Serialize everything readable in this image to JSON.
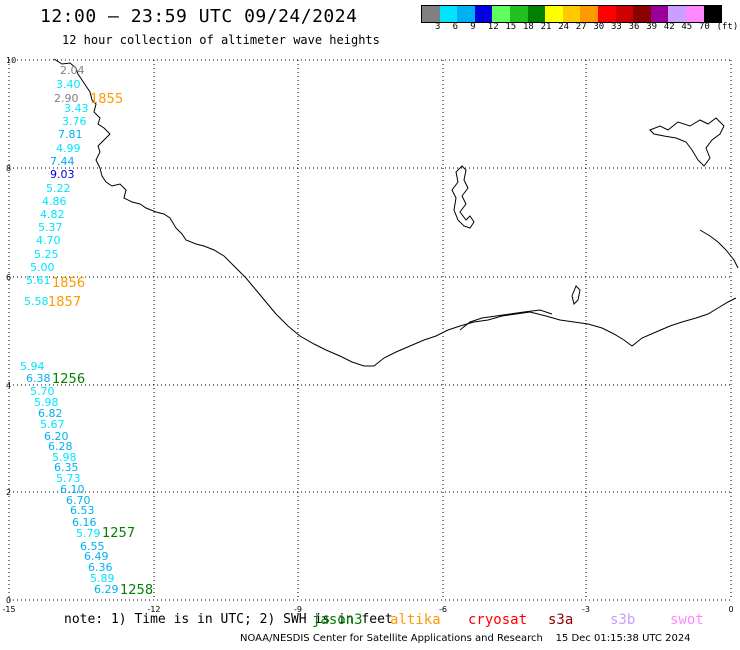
{
  "header": {
    "title": "12:00 – 23:59 UTC 09/24/2024",
    "subtitle": "12 hour collection of altimeter wave heights"
  },
  "legend": {
    "colors": [
      "#808080",
      "#00e5ff",
      "#00b0f0",
      "#0000e0",
      "#60ff60",
      "#20c020",
      "#008000",
      "#ffff00",
      "#ffc800",
      "#ff9900",
      "#ff0000",
      "#cc0000",
      "#8b0000",
      "#990099",
      "#c8a0ff",
      "#ff88ff",
      "#000000"
    ],
    "labels": [
      "3",
      "6",
      "9",
      "12",
      "15",
      "18",
      "21",
      "24",
      "27",
      "30",
      "33",
      "36",
      "39",
      "42",
      "45",
      "70",
      "(ft)"
    ]
  },
  "axes": {
    "x_ticks": [
      "-15",
      "-12",
      "-9",
      "-6",
      "-3",
      "0"
    ],
    "y_ticks": [
      "0",
      "2",
      "4",
      "6",
      "8",
      "10"
    ]
  },
  "observations": [
    {
      "v": "2.04",
      "c": "#808080"
    },
    {
      "v": "3.40",
      "c": "#00e5ff"
    },
    {
      "v": "2.90",
      "c": "#808080"
    },
    {
      "v": "3.43",
      "c": "#00e5ff"
    },
    {
      "v": "3.76",
      "c": "#00e5ff"
    },
    {
      "v": "7.81",
      "c": "#00b0f0"
    },
    {
      "v": "4.99",
      "c": "#00e5ff"
    },
    {
      "v": "7.44",
      "c": "#00b0f0"
    },
    {
      "v": "9.03",
      "c": "#0000e0"
    },
    {
      "v": "5.22",
      "c": "#00e5ff"
    },
    {
      "v": "4.86",
      "c": "#00e5ff"
    },
    {
      "v": "4.82",
      "c": "#00e5ff"
    },
    {
      "v": "5.37",
      "c": "#00e5ff"
    },
    {
      "v": "4.70",
      "c": "#00e5ff"
    },
    {
      "v": "5.25",
      "c": "#00e5ff"
    },
    {
      "v": "5.00",
      "c": "#00e5ff"
    },
    {
      "v": "5.61",
      "c": "#00e5ff"
    },
    {
      "v": "5.58",
      "c": "#00e5ff"
    },
    {
      "v": "5.94",
      "c": "#00e5ff"
    },
    {
      "v": "6.38",
      "c": "#00b0f0"
    },
    {
      "v": "5.70",
      "c": "#00e5ff"
    },
    {
      "v": "5.98",
      "c": "#00e5ff"
    },
    {
      "v": "6.82",
      "c": "#00b0f0"
    },
    {
      "v": "5.67",
      "c": "#00e5ff"
    },
    {
      "v": "6.20",
      "c": "#00b0f0"
    },
    {
      "v": "6.28",
      "c": "#00b0f0"
    },
    {
      "v": "5.98",
      "c": "#00e5ff"
    },
    {
      "v": "6.35",
      "c": "#00b0f0"
    },
    {
      "v": "5.73",
      "c": "#00e5ff"
    },
    {
      "v": "6.10",
      "c": "#00b0f0"
    },
    {
      "v": "6.70",
      "c": "#00b0f0"
    },
    {
      "v": "6.53",
      "c": "#00b0f0"
    },
    {
      "v": "6.16",
      "c": "#00b0f0"
    },
    {
      "v": "5.79",
      "c": "#00e5ff"
    },
    {
      "v": "6.55",
      "c": "#00b0f0"
    },
    {
      "v": "6.49",
      "c": "#00b0f0"
    },
    {
      "v": "6.36",
      "c": "#00b0f0"
    },
    {
      "v": "5.89",
      "c": "#00e5ff"
    },
    {
      "v": "6.29",
      "c": "#00b0f0"
    }
  ],
  "pass_times": [
    {
      "t": "1855",
      "c": "#ff9900"
    },
    {
      "t": "1856",
      "c": "#ff9900"
    },
    {
      "t": "1857",
      "c": "#ff9900"
    },
    {
      "t": "1256",
      "c": "#008000"
    },
    {
      "t": "1257",
      "c": "#008000"
    },
    {
      "t": "1258",
      "c": "#008000"
    }
  ],
  "note": "note: 1) Time is in UTC; 2) SWH is in feet",
  "satellites": [
    {
      "name": "jason3",
      "color": "#008000"
    },
    {
      "name": "altika",
      "color": "#ff9900"
    },
    {
      "name": "cryosat",
      "color": "#ff0000"
    },
    {
      "name": "s3a",
      "color": "#8b0000"
    },
    {
      "name": "s3b",
      "color": "#c8a0ff"
    },
    {
      "name": "swot",
      "color": "#ff88ff"
    }
  ],
  "footer": "NOAA/NESDIS Center for Satellite Applications and Research    15 Dec 01:15:38 UTC 2024"
}
